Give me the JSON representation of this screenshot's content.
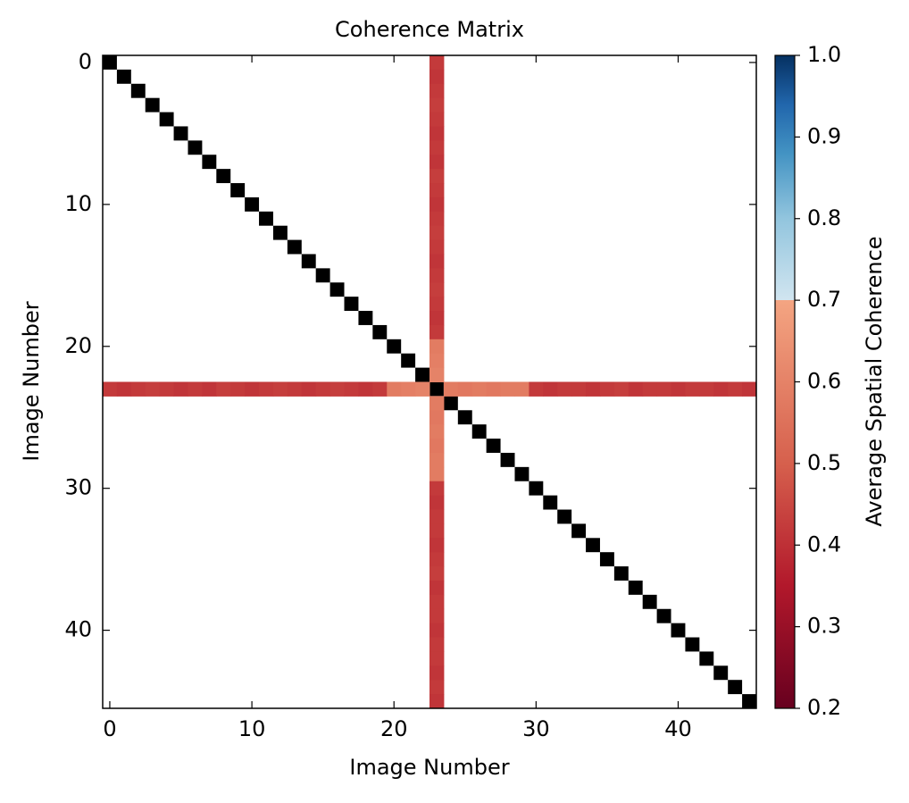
{
  "chart_data": {
    "type": "heatmap",
    "title": "Coherence Matrix",
    "x_label": "Image Number",
    "y_label": "Image Number",
    "colorbar_label": "Average Spatial Coherence",
    "size": 46,
    "line_index": 23,
    "values": [
      0.42,
      0.41,
      0.42,
      0.43,
      0.42,
      0.41,
      0.42,
      0.41,
      0.43,
      0.42,
      0.41,
      0.42,
      0.43,
      0.42,
      0.41,
      0.42,
      0.43,
      0.42,
      0.41,
      0.42,
      0.58,
      0.59,
      0.6,
      null,
      0.58,
      0.57,
      0.58,
      0.57,
      0.58,
      0.58,
      0.42,
      0.41,
      0.42,
      0.42,
      0.41,
      0.42,
      0.43,
      0.41,
      0.42,
      0.42,
      0.41,
      0.42,
      0.42,
      0.41,
      0.42,
      0.41
    ],
    "diagonal_color": "#000000",
    "xlim": [
      -0.5,
      45.5
    ],
    "ylim": [
      45.5,
      -0.5
    ],
    "xticks": [
      0,
      10,
      20,
      30,
      40
    ],
    "yticks": [
      0,
      10,
      20,
      30,
      40
    ],
    "clim": [
      0.2,
      1
    ],
    "cticks": [
      0.2,
      0.3,
      0.4,
      0.5,
      0.6,
      0.7,
      0.8,
      0.9,
      {
        "value": 1,
        "label": "1.0"
      }
    ],
    "colormap": [
      {
        "value": 0.2,
        "color": "#67001f"
      },
      {
        "value": 0.35,
        "color": "#b2182b"
      },
      {
        "value": 0.5,
        "color": "#d6604d"
      },
      {
        "value": 0.7,
        "color": "#f4a582"
      },
      {
        "value": 0.7,
        "color": "#d1e5f0"
      },
      {
        "value": 0.8,
        "color": "#92c5de"
      },
      {
        "value": 0.88,
        "color": "#4393c3"
      },
      {
        "value": 0.94,
        "color": "#2166ac"
      },
      {
        "value": 1,
        "color": "#053061"
      }
    ]
  }
}
